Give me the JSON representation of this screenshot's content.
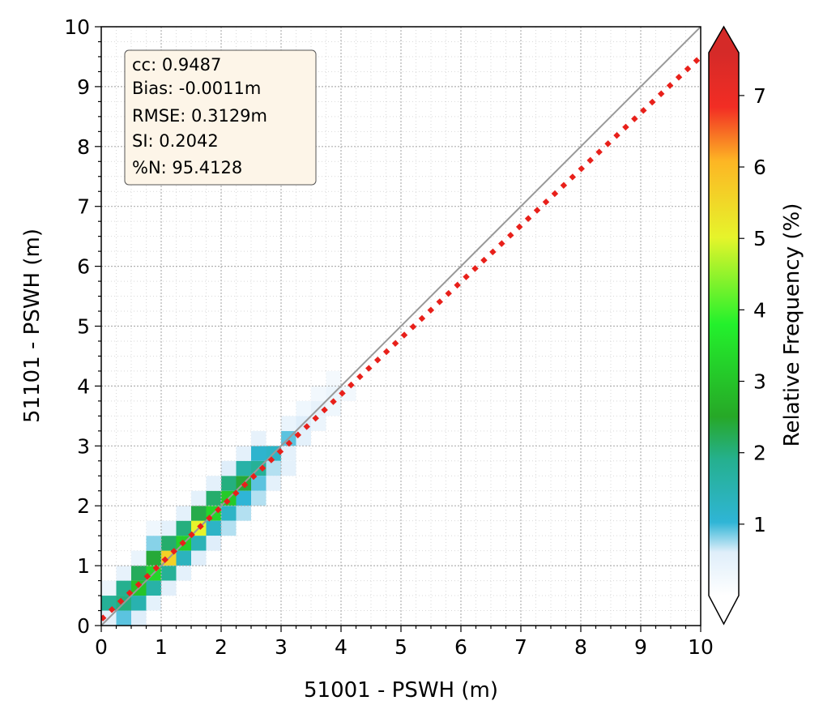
{
  "chart_data": {
    "type": "heatmap",
    "title": "",
    "xlabel": "51001 - PSWH (m)",
    "ylabel": "51101 - PSWH (m)",
    "xlim": [
      0,
      10
    ],
    "ylim": [
      0,
      10
    ],
    "xticks": [
      "0",
      "1",
      "2",
      "3",
      "4",
      "5",
      "6",
      "7",
      "8",
      "9",
      "10"
    ],
    "yticks": [
      "0",
      "1",
      "2",
      "3",
      "4",
      "5",
      "6",
      "7",
      "8",
      "9",
      "10"
    ],
    "grid": true,
    "bin_size": 0.25,
    "cells": [
      [
        0.125,
        0.375,
        1.8
      ],
      [
        0.375,
        0.375,
        2.0
      ],
      [
        0.375,
        0.625,
        1.9
      ],
      [
        0.625,
        0.625,
        3.0
      ],
      [
        0.625,
        0.375,
        1.5
      ],
      [
        0.375,
        0.125,
        0.9
      ],
      [
        0.125,
        0.125,
        0.5
      ],
      [
        0.625,
        0.875,
        2.2
      ],
      [
        0.875,
        0.875,
        3.3
      ],
      [
        0.875,
        0.625,
        1.6
      ],
      [
        0.875,
        1.125,
        2.4
      ],
      [
        1.125,
        1.125,
        5.6
      ],
      [
        1.125,
        0.875,
        1.8
      ],
      [
        1.125,
        1.375,
        2.1
      ],
      [
        0.875,
        1.375,
        0.8
      ],
      [
        1.375,
        1.375,
        3.2
      ],
      [
        1.375,
        1.125,
        1.3
      ],
      [
        1.375,
        1.625,
        2.0
      ],
      [
        1.625,
        1.625,
        5.0
      ],
      [
        1.625,
        1.375,
        1.4
      ],
      [
        1.625,
        1.875,
        2.3
      ],
      [
        1.875,
        1.875,
        3.3
      ],
      [
        1.875,
        1.625,
        1.2
      ],
      [
        1.875,
        2.125,
        2.1
      ],
      [
        2.125,
        2.125,
        3.1
      ],
      [
        2.125,
        1.875,
        1.2
      ],
      [
        2.125,
        2.375,
        2.0
      ],
      [
        2.375,
        2.375,
        2.4
      ],
      [
        2.375,
        2.125,
        1.0
      ],
      [
        2.375,
        2.625,
        1.6
      ],
      [
        2.625,
        2.625,
        1.8
      ],
      [
        2.625,
        2.375,
        0.9
      ],
      [
        2.625,
        2.875,
        1.1
      ],
      [
        2.875,
        2.875,
        1.2
      ],
      [
        2.875,
        2.625,
        0.7
      ],
      [
        3.125,
        3.125,
        0.9
      ],
      [
        3.125,
        2.875,
        0.5
      ],
      [
        3.375,
        3.375,
        0.6
      ],
      [
        3.625,
        3.625,
        0.45
      ],
      [
        3.875,
        3.875,
        0.35
      ],
      [
        0.625,
        0.125,
        0.6
      ],
      [
        0.875,
        0.375,
        0.5
      ],
      [
        0.125,
        0.625,
        0.35
      ],
      [
        0.375,
        0.875,
        0.45
      ],
      [
        1.125,
        0.625,
        0.55
      ],
      [
        0.625,
        1.125,
        0.4
      ],
      [
        1.375,
        0.875,
        0.5
      ],
      [
        0.875,
        1.625,
        0.3
      ],
      [
        1.625,
        1.125,
        0.6
      ],
      [
        1.125,
        1.625,
        0.5
      ],
      [
        1.875,
        1.375,
        0.6
      ],
      [
        1.375,
        1.875,
        0.5
      ],
      [
        2.125,
        1.625,
        0.7
      ],
      [
        1.625,
        2.125,
        0.5
      ],
      [
        2.375,
        1.875,
        0.7
      ],
      [
        1.875,
        2.375,
        0.5
      ],
      [
        2.625,
        2.125,
        0.7
      ],
      [
        2.125,
        2.625,
        0.6
      ],
      [
        2.875,
        2.375,
        0.5
      ],
      [
        2.375,
        2.875,
        0.5
      ],
      [
        3.125,
        2.625,
        0.5
      ],
      [
        2.625,
        3.125,
        0.45
      ],
      [
        3.375,
        3.125,
        0.5
      ],
      [
        3.125,
        3.375,
        0.4
      ],
      [
        3.625,
        3.375,
        0.35
      ],
      [
        3.375,
        3.625,
        0.3
      ],
      [
        3.875,
        3.625,
        0.3
      ],
      [
        3.625,
        3.875,
        0.25
      ],
      [
        4.125,
        3.875,
        0.25
      ],
      [
        3.875,
        4.125,
        0.2
      ]
    ],
    "regression": {
      "slope": 0.94,
      "intercept": 0.1,
      "style": "dotted",
      "color": "#e8201a"
    },
    "identity_line": {
      "color": "#999999"
    },
    "stats": [
      "cc: 0.9487",
      "Bias: -0.0011m",
      "RMSE: 0.3129m",
      "SI: 0.2042",
      "%N: 95.4128"
    ],
    "colorbar": {
      "label": "Relative Frequency (%)",
      "min": 0,
      "max": 7.6,
      "ticks": [
        1,
        2,
        3,
        4,
        5,
        6,
        7
      ],
      "tick_labels": [
        "1",
        "2",
        "3",
        "4",
        "5",
        "6",
        "7"
      ],
      "colors": [
        "#ffffff",
        "#dfeefa",
        "#2fb5d6",
        "#25b08f",
        "#26a827",
        "#23f12c",
        "#e6f42b",
        "#fdb624",
        "#f22d24",
        "#d52a28"
      ],
      "extend": "both"
    }
  }
}
